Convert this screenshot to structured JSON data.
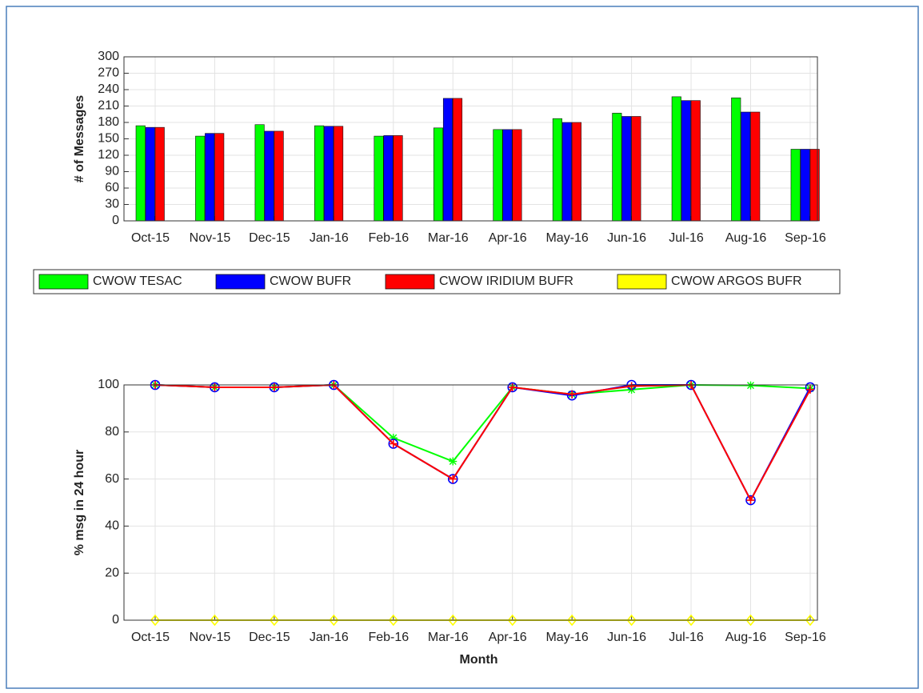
{
  "chart_data": [
    {
      "type": "bar",
      "ylabel": "# of Messages",
      "categories": [
        "Oct-15",
        "Nov-15",
        "Dec-15",
        "Jan-16",
        "Feb-16",
        "Mar-16",
        "Apr-16",
        "May-16",
        "Jun-16",
        "Jul-16",
        "Aug-16",
        "Sep-16"
      ],
      "series": [
        {
          "name": "CWOW TESAC",
          "color": "#00ff00",
          "values": [
            174,
            155,
            176,
            174,
            155,
            170,
            167,
            187,
            197,
            227,
            225,
            131
          ]
        },
        {
          "name": "CWOW BUFR",
          "color": "#0000ff",
          "values": [
            171,
            160,
            164,
            173,
            156,
            224,
            167,
            180,
            191,
            220,
            199,
            131
          ]
        },
        {
          "name": "CWOW IRIDIUM BUFR",
          "color": "#ff0000",
          "values": [
            171,
            160,
            164,
            173,
            156,
            224,
            167,
            180,
            191,
            220,
            199,
            131
          ]
        },
        {
          "name": "CWOW ARGOS BUFR",
          "color": "#ffff00",
          "values": [
            0,
            0,
            0,
            0,
            0,
            0,
            0,
            0,
            0,
            0,
            0,
            0
          ]
        }
      ],
      "ylim": [
        0,
        300
      ],
      "yticks": [
        0,
        30,
        60,
        90,
        120,
        150,
        180,
        210,
        240,
        270,
        300
      ],
      "grid": true
    },
    {
      "type": "line",
      "xlabel": "Month",
      "ylabel": "% msg in 24 hour",
      "categories": [
        "Oct-15",
        "Nov-15",
        "Dec-15",
        "Jan-16",
        "Feb-16",
        "Mar-16",
        "Apr-16",
        "May-16",
        "Jun-16",
        "Jul-16",
        "Aug-16",
        "Sep-16"
      ],
      "series": [
        {
          "color": "#00ff00",
          "marker": "star",
          "values": [
            100,
            99,
            99,
            100,
            77.5,
            67.5,
            99,
            96,
            98,
            100,
            99.8,
            98.5
          ]
        },
        {
          "color": "#0000ff",
          "marker": "circle",
          "values": [
            100,
            99,
            99,
            100,
            75,
            60,
            99,
            95.5,
            100,
            100,
            51,
            99
          ]
        },
        {
          "color": "#ff0000",
          "marker": "plus",
          "values": [
            100,
            99,
            99,
            100,
            75,
            60,
            99,
            96,
            99.5,
            100,
            51,
            98
          ]
        },
        {
          "color": "#ffff00",
          "marker": "diamond",
          "values": [
            0,
            0,
            0,
            0,
            0,
            0,
            0,
            0,
            0,
            0,
            0,
            0
          ]
        }
      ],
      "ylim": [
        0,
        100
      ],
      "yticks": [
        0,
        20,
        40,
        60,
        80,
        100
      ],
      "grid": true
    }
  ]
}
